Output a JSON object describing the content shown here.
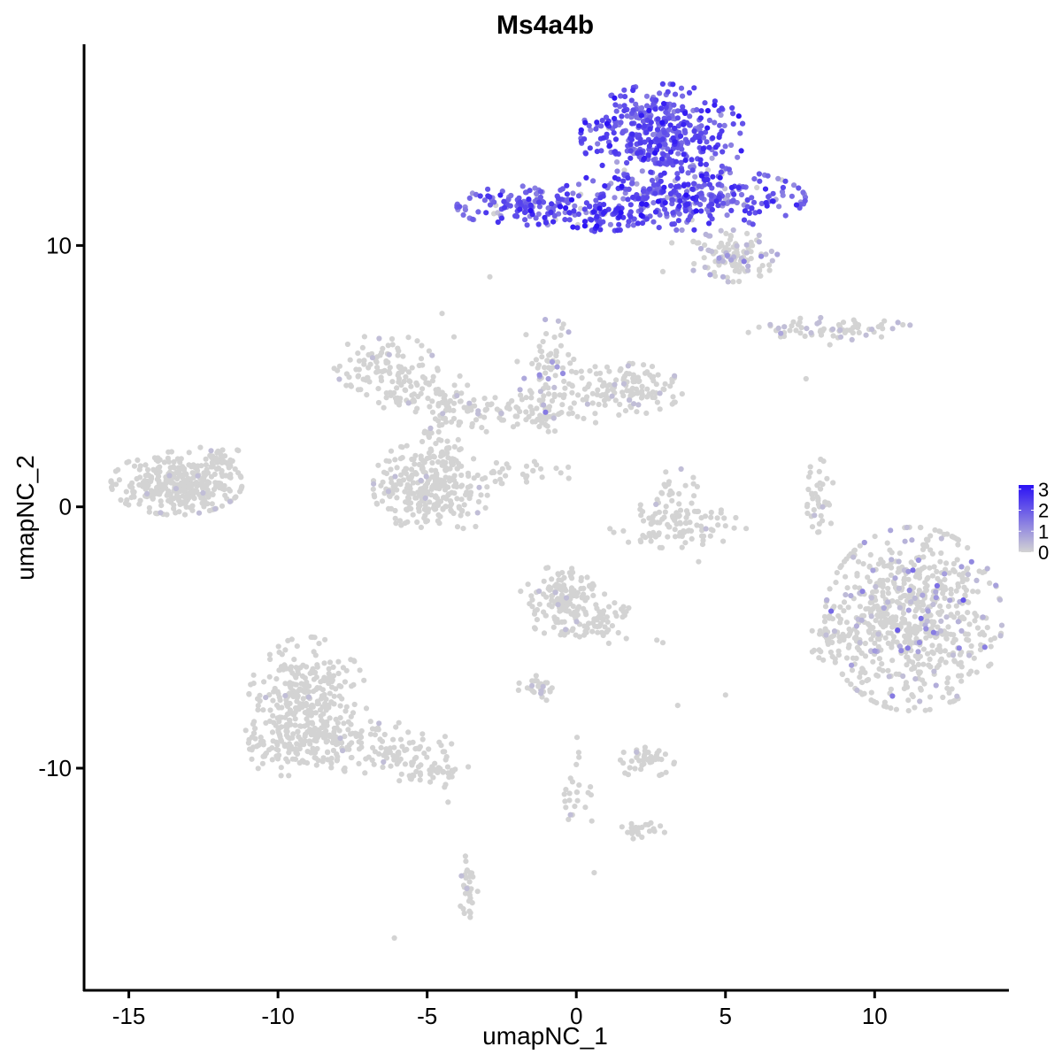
{
  "chart_data": {
    "type": "scatter",
    "title": "Ms4a4b",
    "xlabel": "umapNC_1",
    "ylabel": "umapNC_2",
    "xlim": [
      -16.5,
      14.5
    ],
    "ylim": [
      -18.5,
      17.7
    ],
    "x_ticks": [
      -15,
      -10,
      -5,
      0,
      5,
      10
    ],
    "x_tick_labels": [
      "-15",
      "-10",
      "-5",
      "0",
      "5",
      "10"
    ],
    "y_ticks": [
      10,
      0,
      -10
    ],
    "y_tick_labels": [
      "10",
      "0",
      "-10"
    ],
    "grid": false,
    "color_scale": {
      "min": 0,
      "max": 3.2,
      "low_color": "#d3d3d3",
      "high_color": "#2b12f5",
      "legend_ticks": [
        3,
        2,
        1,
        0
      ],
      "legend_tick_labels": [
        "3",
        "2",
        "1",
        "0"
      ],
      "legend_position": "right"
    },
    "clusters": [
      {
        "cx": 2.9,
        "cy": 14.2,
        "sx": 1.25,
        "sy": 0.9,
        "n": 420,
        "expr": 2.1,
        "expr_sd": 0.5,
        "frac": 1.0
      },
      {
        "cx": 3.5,
        "cy": 11.8,
        "sx": 1.9,
        "sy": 0.55,
        "n": 320,
        "expr": 1.9,
        "expr_sd": 0.6,
        "frac": 0.95
      },
      {
        "cx": -1.8,
        "cy": 11.5,
        "sx": 1.0,
        "sy": 0.35,
        "n": 130,
        "expr": 1.9,
        "expr_sd": 0.5,
        "frac": 0.95
      },
      {
        "cx": 0.7,
        "cy": 11.2,
        "sx": 0.9,
        "sy": 0.3,
        "n": 80,
        "expr": 2.4,
        "expr_sd": 0.5,
        "frac": 0.95
      },
      {
        "cx": 5.2,
        "cy": 9.6,
        "sx": 0.7,
        "sy": 0.45,
        "n": 110,
        "expr": 0.4,
        "expr_sd": 0.4,
        "frac": 0.4
      },
      {
        "cx": -13.4,
        "cy": 0.9,
        "sx": 1.0,
        "sy": 0.55,
        "n": 330,
        "expr": 0.0,
        "expr_sd": 0.0,
        "frac": 0.02
      },
      {
        "cx": -12.0,
        "cy": 1.7,
        "sx": 0.5,
        "sy": 0.4,
        "n": 40,
        "expr": 0.0,
        "expr_sd": 0.0,
        "frac": 0.05
      },
      {
        "cx": -6.4,
        "cy": 5.3,
        "sx": 0.8,
        "sy": 0.6,
        "n": 100,
        "expr": 0.0,
        "expr_sd": 0.0,
        "frac": 0.03
      },
      {
        "cx": -4.7,
        "cy": 4.2,
        "sx": 0.9,
        "sy": 0.4,
        "n": 70,
        "expr": 0.0,
        "expr_sd": 0.0,
        "frac": 0.05
      },
      {
        "cx": -0.9,
        "cy": 5.2,
        "sx": 0.5,
        "sy": 0.9,
        "n": 80,
        "expr": 0.6,
        "expr_sd": 0.4,
        "frac": 0.15
      },
      {
        "cx": 1.6,
        "cy": 4.5,
        "sx": 0.9,
        "sy": 0.45,
        "n": 130,
        "expr": 0.0,
        "expr_sd": 0.0,
        "frac": 0.08
      },
      {
        "cx": -2.0,
        "cy": 3.6,
        "sx": 1.4,
        "sy": 0.35,
        "n": 90,
        "expr": 0.0,
        "expr_sd": 0.0,
        "frac": 0.05
      },
      {
        "cx": -4.5,
        "cy": 2.2,
        "sx": 0.45,
        "sy": 1.0,
        "n": 70,
        "expr": 0.0,
        "expr_sd": 0.0,
        "frac": 0.03
      },
      {
        "cx": -5.6,
        "cy": 0.8,
        "sx": 0.55,
        "sy": 0.7,
        "n": 140,
        "expr": 0.0,
        "expr_sd": 0.0,
        "frac": 0.03
      },
      {
        "cx": -4.3,
        "cy": 0.5,
        "sx": 0.6,
        "sy": 0.8,
        "n": 120,
        "expr": 0.0,
        "expr_sd": 0.0,
        "frac": 0.03
      },
      {
        "cx": -1.8,
        "cy": 1.3,
        "sx": 0.8,
        "sy": 0.2,
        "n": 30,
        "expr": 0.0,
        "expr_sd": 0.0,
        "frac": 0.0
      },
      {
        "cx": 3.3,
        "cy": -0.7,
        "sx": 1.1,
        "sy": 0.4,
        "n": 100,
        "expr": 0.0,
        "expr_sd": 0.0,
        "frac": 0.03
      },
      {
        "cx": 3.3,
        "cy": 0.6,
        "sx": 0.35,
        "sy": 0.4,
        "n": 25,
        "expr": 0.0,
        "expr_sd": 0.0,
        "frac": 0.05
      },
      {
        "cx": 8.1,
        "cy": 0.3,
        "sx": 0.25,
        "sy": 0.7,
        "n": 40,
        "expr": 0.0,
        "expr_sd": 0.0,
        "frac": 0.05
      },
      {
        "cx": 8.5,
        "cy": 6.8,
        "sx": 1.3,
        "sy": 0.2,
        "n": 70,
        "expr": 0.2,
        "expr_sd": 0.3,
        "frac": 0.2
      },
      {
        "cx": 11.3,
        "cy": -4.3,
        "sx": 1.35,
        "sy": 1.6,
        "n": 700,
        "expr": 0.6,
        "expr_sd": 0.6,
        "frac": 0.12
      },
      {
        "cx": 8.8,
        "cy": -4.9,
        "sx": 0.5,
        "sy": 0.5,
        "n": 40,
        "expr": 0.0,
        "expr_sd": 0.0,
        "frac": 0.05
      },
      {
        "cx": -9.0,
        "cy": -7.4,
        "sx": 0.9,
        "sy": 1.1,
        "n": 280,
        "expr": 0.0,
        "expr_sd": 0.0,
        "frac": 0.02
      },
      {
        "cx": -9.6,
        "cy": -9.0,
        "sx": 0.8,
        "sy": 0.6,
        "n": 120,
        "expr": 0.0,
        "expr_sd": 0.0,
        "frac": 0.02
      },
      {
        "cx": -6.8,
        "cy": -9.2,
        "sx": 1.2,
        "sy": 0.45,
        "n": 120,
        "expr": 0.0,
        "expr_sd": 0.0,
        "frac": 0.02
      },
      {
        "cx": -4.8,
        "cy": -10.2,
        "sx": 0.6,
        "sy": 0.25,
        "n": 40,
        "expr": 0.0,
        "expr_sd": 0.0,
        "frac": 0.0
      },
      {
        "cx": -0.6,
        "cy": -3.6,
        "sx": 0.6,
        "sy": 0.6,
        "n": 130,
        "expr": 0.0,
        "expr_sd": 0.0,
        "frac": 0.04
      },
      {
        "cx": 0.6,
        "cy": -4.4,
        "sx": 0.6,
        "sy": 0.5,
        "n": 70,
        "expr": 0.0,
        "expr_sd": 0.0,
        "frac": 0.02
      },
      {
        "cx": -1.3,
        "cy": -6.9,
        "sx": 0.3,
        "sy": 0.2,
        "n": 25,
        "expr": 0.0,
        "expr_sd": 0.0,
        "frac": 0.08
      },
      {
        "cx": 2.3,
        "cy": -9.7,
        "sx": 0.45,
        "sy": 0.3,
        "n": 40,
        "expr": 0.0,
        "expr_sd": 0.0,
        "frac": 0.05
      },
      {
        "cx": 2.2,
        "cy": -12.4,
        "sx": 0.35,
        "sy": 0.15,
        "n": 25,
        "expr": 0.0,
        "expr_sd": 0.0,
        "frac": 0.0
      },
      {
        "cx": -3.6,
        "cy": -14.6,
        "sx": 0.15,
        "sy": 0.6,
        "n": 30,
        "expr": 0.0,
        "expr_sd": 0.0,
        "frac": 0.1
      },
      {
        "cx": 0.0,
        "cy": -10.8,
        "sx": 0.3,
        "sy": 0.9,
        "n": 25,
        "expr": 0.0,
        "expr_sd": 0.0,
        "frac": 0.05
      },
      {
        "cx": -0.6,
        "cy": 8.0,
        "sx": 0.0,
        "sy": 0.0,
        "n": 0,
        "expr": 0.0,
        "expr_sd": 0.0,
        "frac": 0.0
      }
    ],
    "stray_points": [
      [
        -2.9,
        8.8
      ],
      [
        -4.5,
        7.4
      ],
      [
        -4.1,
        6.5
      ],
      [
        8.5,
        6.2
      ],
      [
        7.7,
        4.9
      ],
      [
        5.9,
        10.0
      ],
      [
        4.1,
        10.1
      ],
      [
        3.2,
        10.1
      ],
      [
        2.9,
        9.0
      ],
      [
        2.9,
        -5.2
      ],
      [
        2.7,
        -5.1
      ],
      [
        3.4,
        -7.6
      ],
      [
        5.0,
        -7.2
      ],
      [
        -1.0,
        -7.4
      ],
      [
        -4.3,
        -11.3
      ],
      [
        0.6,
        -14.0
      ],
      [
        -6.1,
        -16.5
      ],
      [
        -3.7,
        -14.2
      ],
      [
        4.1,
        -2.1
      ],
      [
        -1.4,
        -4.1
      ]
    ]
  }
}
